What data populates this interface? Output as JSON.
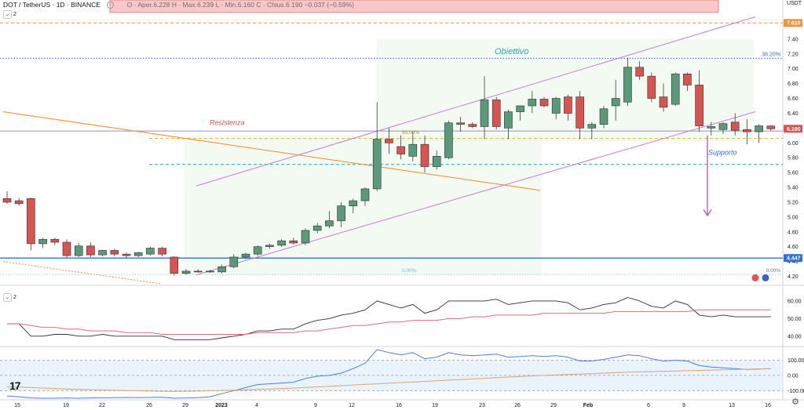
{
  "header": {
    "symbol": "DOT / TetherUS · 1D · BINANCE",
    "ohlc": "O · Aper.6.228  H · Max.6.239  L · Min.6.160  C · Chius.6.190  −0.037 (−0.59%)",
    "pane_count": "2",
    "indicator_count": "2",
    "currency": "USDT"
  },
  "annotations": {
    "target": "Obiettivo",
    "resistance": "Resistenza",
    "support": "Supporto",
    "fib_top": "38.20%",
    "fib_mid": "50.00%",
    "fib_low": "0.00%",
    "fib_low_right": "0.00%"
  },
  "colors": {
    "up": "#5b9a78",
    "down": "#d9534f",
    "channel": "#c77be0",
    "trendline": "#f0943c",
    "support_line": "#2f6fe0",
    "target_line": "#2f6fe0",
    "resistance_label": "#d9534f",
    "target_label": "#2aa3c9"
  },
  "chart_data": [
    {
      "type": "candlestick",
      "title": "DOT / TetherUS · 1D · BINANCE",
      "xlabel": "",
      "ylabel": "",
      "ylim": [
        4.1,
        7.8
      ],
      "y_ticks": [
        4.2,
        4.4,
        4.6,
        4.8,
        5.0,
        5.2,
        5.4,
        5.6,
        5.8,
        6.0,
        6.2,
        6.4,
        6.6,
        6.8,
        7.0,
        7.2,
        7.4,
        7.6
      ],
      "x_ticks": [
        "15",
        "19",
        "22",
        "26",
        "29",
        "2023",
        "4",
        "9",
        "12",
        "16",
        "19",
        "23",
        "26",
        "29",
        "Feb",
        "6",
        "9",
        "13",
        "16"
      ],
      "price_labels": [
        {
          "value": 7.618,
          "text": "7.618",
          "color": "#f0943c"
        },
        {
          "value": 6.19,
          "text": "6.190",
          "color": "#d9534f"
        },
        {
          "value": 4.447,
          "text": "4.447",
          "color": "#2f6fe0"
        }
      ],
      "levels": [
        {
          "name": "target",
          "value": 7.14
        },
        {
          "name": "top-dashed",
          "value": 7.618
        },
        {
          "name": "support",
          "value": 4.447
        },
        {
          "name": "fib-50",
          "value": 6.06
        },
        {
          "name": "cyan-dashed",
          "value": 5.71
        },
        {
          "name": "resistance",
          "value": 6.16
        }
      ],
      "candles": [
        {
          "o": 5.25,
          "h": 5.35,
          "l": 5.18,
          "c": 5.2
        },
        {
          "o": 5.22,
          "h": 5.26,
          "l": 5.15,
          "c": 5.18
        },
        {
          "o": 5.25,
          "h": 5.26,
          "l": 4.55,
          "c": 4.64
        },
        {
          "o": 4.64,
          "h": 4.72,
          "l": 4.58,
          "c": 4.7
        },
        {
          "o": 4.7,
          "h": 4.72,
          "l": 4.62,
          "c": 4.66
        },
        {
          "o": 4.66,
          "h": 4.7,
          "l": 4.45,
          "c": 4.48
        },
        {
          "o": 4.48,
          "h": 4.65,
          "l": 4.46,
          "c": 4.61
        },
        {
          "o": 4.61,
          "h": 4.66,
          "l": 4.46,
          "c": 4.49
        },
        {
          "o": 4.49,
          "h": 4.56,
          "l": 4.47,
          "c": 4.55
        },
        {
          "o": 4.55,
          "h": 4.57,
          "l": 4.47,
          "c": 4.5
        },
        {
          "o": 4.5,
          "h": 4.52,
          "l": 4.44,
          "c": 4.48
        },
        {
          "o": 4.48,
          "h": 4.53,
          "l": 4.46,
          "c": 4.52
        },
        {
          "o": 4.5,
          "h": 4.6,
          "l": 4.48,
          "c": 4.58
        },
        {
          "o": 4.58,
          "h": 4.6,
          "l": 4.47,
          "c": 4.5
        },
        {
          "o": 4.46,
          "h": 4.47,
          "l": 4.21,
          "c": 4.24
        },
        {
          "o": 4.24,
          "h": 4.3,
          "l": 4.22,
          "c": 4.27
        },
        {
          "o": 4.27,
          "h": 4.3,
          "l": 4.25,
          "c": 4.26
        },
        {
          "o": 4.27,
          "h": 4.29,
          "l": 4.25,
          "c": 4.26
        },
        {
          "o": 4.26,
          "h": 4.36,
          "l": 4.24,
          "c": 4.33
        },
        {
          "o": 4.33,
          "h": 4.5,
          "l": 4.31,
          "c": 4.46
        },
        {
          "o": 4.46,
          "h": 4.52,
          "l": 4.43,
          "c": 4.5
        },
        {
          "o": 4.5,
          "h": 4.62,
          "l": 4.48,
          "c": 4.6
        },
        {
          "o": 4.6,
          "h": 4.64,
          "l": 4.57,
          "c": 4.62
        },
        {
          "o": 4.62,
          "h": 4.7,
          "l": 4.6,
          "c": 4.68
        },
        {
          "o": 4.68,
          "h": 4.72,
          "l": 4.63,
          "c": 4.65
        },
        {
          "o": 4.65,
          "h": 4.85,
          "l": 4.62,
          "c": 4.82
        },
        {
          "o": 4.82,
          "h": 4.92,
          "l": 4.78,
          "c": 4.88
        },
        {
          "o": 4.88,
          "h": 5.08,
          "l": 4.85,
          "c": 4.95
        },
        {
          "o": 4.95,
          "h": 5.2,
          "l": 4.86,
          "c": 5.15
        },
        {
          "o": 5.15,
          "h": 5.25,
          "l": 5.05,
          "c": 5.22
        },
        {
          "o": 5.22,
          "h": 5.4,
          "l": 5.15,
          "c": 5.38
        },
        {
          "o": 5.38,
          "h": 6.55,
          "l": 5.35,
          "c": 6.05
        },
        {
          "o": 6.05,
          "h": 6.2,
          "l": 5.85,
          "c": 6.0
        },
        {
          "o": 5.95,
          "h": 6.1,
          "l": 5.78,
          "c": 5.85
        },
        {
          "o": 5.82,
          "h": 6.15,
          "l": 5.75,
          "c": 5.98
        },
        {
          "o": 5.98,
          "h": 6.1,
          "l": 5.6,
          "c": 5.68
        },
        {
          "o": 5.68,
          "h": 5.9,
          "l": 5.64,
          "c": 5.82
        },
        {
          "o": 5.8,
          "h": 6.3,
          "l": 5.78,
          "c": 6.27
        },
        {
          "o": 6.27,
          "h": 6.35,
          "l": 6.15,
          "c": 6.25
        },
        {
          "o": 6.25,
          "h": 6.28,
          "l": 6.2,
          "c": 6.22
        },
        {
          "o": 6.22,
          "h": 6.9,
          "l": 6.05,
          "c": 6.58
        },
        {
          "o": 6.58,
          "h": 6.62,
          "l": 6.18,
          "c": 6.22
        },
        {
          "o": 6.2,
          "h": 6.45,
          "l": 6.05,
          "c": 6.42
        },
        {
          "o": 6.42,
          "h": 6.5,
          "l": 6.3,
          "c": 6.5
        },
        {
          "o": 6.5,
          "h": 6.7,
          "l": 6.4,
          "c": 6.59
        },
        {
          "o": 6.59,
          "h": 6.62,
          "l": 6.48,
          "c": 6.5
        },
        {
          "o": 6.4,
          "h": 6.62,
          "l": 6.32,
          "c": 6.6
        },
        {
          "o": 6.62,
          "h": 6.65,
          "l": 6.3,
          "c": 6.4
        },
        {
          "o": 6.62,
          "h": 6.7,
          "l": 6.05,
          "c": 6.2
        },
        {
          "o": 6.2,
          "h": 6.28,
          "l": 6.05,
          "c": 6.25
        },
        {
          "o": 6.25,
          "h": 6.5,
          "l": 6.2,
          "c": 6.46
        },
        {
          "o": 6.5,
          "h": 6.85,
          "l": 6.3,
          "c": 6.6
        },
        {
          "o": 6.55,
          "h": 7.15,
          "l": 6.5,
          "c": 7.02
        },
        {
          "o": 7.02,
          "h": 7.1,
          "l": 6.85,
          "c": 6.9
        },
        {
          "o": 6.9,
          "h": 6.95,
          "l": 6.55,
          "c": 6.6
        },
        {
          "o": 6.62,
          "h": 6.8,
          "l": 6.42,
          "c": 6.48
        },
        {
          "o": 6.52,
          "h": 6.95,
          "l": 6.5,
          "c": 6.93
        },
        {
          "o": 6.93,
          "h": 6.95,
          "l": 6.7,
          "c": 6.78
        },
        {
          "o": 6.78,
          "h": 6.98,
          "l": 6.15,
          "c": 6.23
        },
        {
          "o": 6.2,
          "h": 6.28,
          "l": 6.1,
          "c": 6.22
        },
        {
          "o": 6.18,
          "h": 6.28,
          "l": 6.12,
          "c": 6.26
        },
        {
          "o": 6.28,
          "h": 6.4,
          "l": 6.1,
          "c": 6.17
        },
        {
          "o": 6.18,
          "h": 6.32,
          "l": 5.98,
          "c": 6.15
        },
        {
          "o": 6.15,
          "h": 6.25,
          "l": 6.0,
          "c": 6.23
        },
        {
          "o": 6.228,
          "h": 6.239,
          "l": 6.16,
          "c": 6.19
        }
      ]
    },
    {
      "type": "line",
      "title": "",
      "ylim": [
        35,
        68
      ],
      "y_ticks": [
        40.0,
        50.0,
        60.0
      ],
      "series": [
        {
          "values": [
            47,
            47,
            40,
            40,
            41,
            41,
            40,
            40,
            41,
            40,
            40,
            40,
            40,
            40,
            38,
            38,
            38,
            38,
            39,
            40,
            41,
            43,
            43,
            44,
            44,
            47,
            49,
            50,
            52,
            53,
            55,
            60,
            58,
            56,
            58,
            53,
            55,
            60,
            60,
            60,
            60,
            61,
            58,
            59,
            60,
            60,
            60,
            59,
            55,
            56,
            58,
            59,
            62,
            60,
            57,
            56,
            60,
            58,
            52,
            51,
            52,
            51,
            51,
            51,
            51
          ]
        },
        {
          "values": [
            47,
            47,
            46,
            45,
            45,
            44,
            44,
            43,
            43,
            43,
            42,
            42,
            42,
            41,
            41,
            41,
            41,
            41,
            41,
            41,
            41,
            42,
            42,
            42,
            42,
            43,
            43,
            44,
            45,
            46,
            46,
            47,
            48,
            48,
            49,
            49,
            49,
            50,
            50,
            51,
            51,
            52,
            52,
            52,
            52,
            53,
            53,
            53,
            53,
            53,
            53,
            54,
            54,
            54,
            54,
            54,
            54,
            54,
            55,
            55,
            55,
            55,
            55,
            55,
            55
          ]
        }
      ]
    },
    {
      "type": "line",
      "title": "",
      "ylim": [
        -150,
        180
      ],
      "y_ticks": [
        -100.0,
        0.0,
        100.0
      ],
      "series": [
        {
          "values": [
            -135,
            -140,
            -148,
            -150,
            -150,
            -148,
            -150,
            -148,
            -147,
            -146,
            -145,
            -146,
            -145,
            -144,
            -150,
            -148,
            -146,
            -140,
            -120,
            -100,
            -80,
            -60,
            -55,
            -50,
            -45,
            -20,
            -5,
            0,
            15,
            45,
            80,
            170,
            150,
            135,
            150,
            110,
            120,
            150,
            135,
            130,
            135,
            140,
            120,
            125,
            130,
            125,
            130,
            120,
            95,
            95,
            105,
            120,
            135,
            130,
            110,
            95,
            100,
            95,
            65,
            55,
            50,
            45,
            40,
            42,
            45
          ]
        },
        {
          "values": [
            -75,
            -77,
            -80,
            -83,
            -86,
            -89,
            -91,
            -94,
            -96,
            -98,
            -100,
            -101,
            -103,
            -104,
            -105,
            -104,
            -103,
            -101,
            -99,
            -97,
            -95,
            -92,
            -89,
            -86,
            -83,
            -79,
            -75,
            -71,
            -67,
            -63,
            -59,
            -55,
            -51,
            -47,
            -43,
            -39,
            -35,
            -31,
            -27,
            -23,
            -19,
            -15,
            -11,
            -7,
            -3,
            0,
            3,
            6,
            9,
            12,
            15,
            18,
            21,
            23,
            25,
            27,
            29,
            31,
            33,
            35,
            37,
            39,
            41,
            43,
            45
          ]
        }
      ]
    }
  ]
}
